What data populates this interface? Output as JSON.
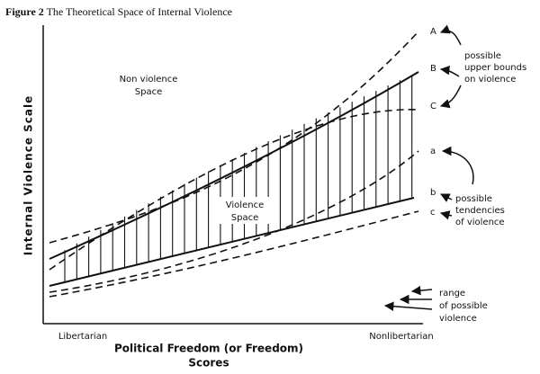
{
  "title": {
    "label": "Figure 2",
    "text": "The Theoretical Space of Internal Violence"
  },
  "y_axis_label": "Internal Violence Scale",
  "x_axis_label": [
    "Political Freedom (or Freedom)",
    "Scores"
  ],
  "x_axis_ends": [
    "Libertarian",
    "Nonlibertarian"
  ],
  "regions": [
    {
      "lines": [
        "Non violence",
        "Space"
      ]
    },
    {
      "lines": [
        "Violence",
        "Space"
      ]
    }
  ],
  "curves": [
    "A",
    "B",
    "C",
    "a",
    "b",
    "c"
  ],
  "annotations": [
    {
      "lines": [
        "possible",
        "upper bounds",
        "on violence"
      ]
    },
    {
      "lines": [
        "possible",
        "tendencies",
        "of violence"
      ]
    },
    {
      "lines": [
        "range",
        "of possible",
        "violence"
      ]
    }
  ]
}
